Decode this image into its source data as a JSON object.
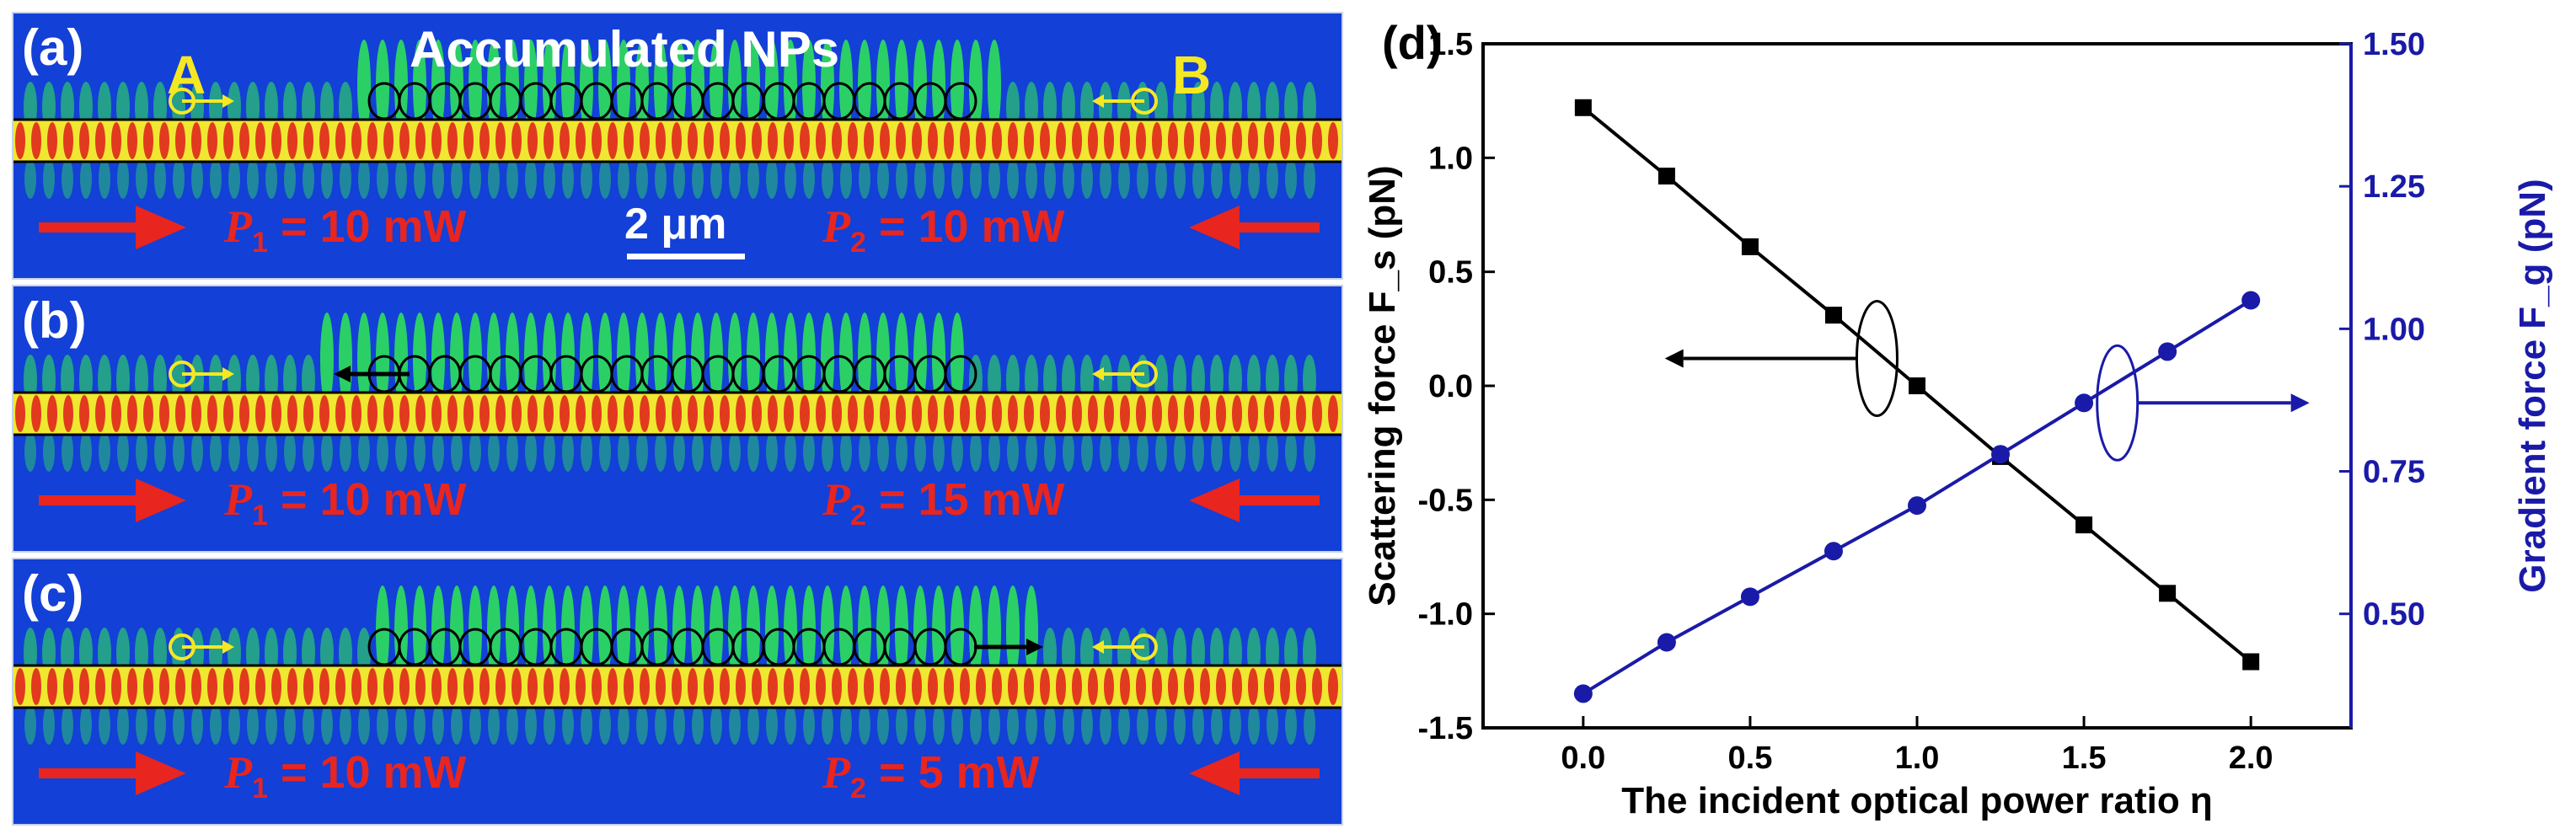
{
  "panels": [
    {
      "id": "a",
      "label": "(a)",
      "title": "Accumulated  NPs",
      "point_a": "A",
      "point_b": "B",
      "scale": "2 μm",
      "p1_symbol": "P",
      "p1_sub": "1",
      "p1_value": "= 10 mW",
      "p2_symbol": "P",
      "p2_sub": "2",
      "p2_value": "= 10 mW"
    },
    {
      "id": "b",
      "label": "(b)",
      "p1_symbol": "P",
      "p1_sub": "1",
      "p1_value": "= 10 mW",
      "p2_symbol": "P",
      "p2_sub": "2",
      "p2_value": "= 15 mW"
    },
    {
      "id": "c",
      "label": "(c)",
      "p1_symbol": "P",
      "p1_sub": "1",
      "p1_value": "= 10 mW",
      "p2_symbol": "P",
      "p2_sub": "2",
      "p2_value": "= 5 mW"
    }
  ],
  "colors": {
    "sim_bg": "#1340d6",
    "field_green": "#2ee05a",
    "field_yellow": "#f0e830",
    "field_red": "#e23a1e",
    "text_red": "#e8251f",
    "text_yellow": "#f5e823",
    "black_series": "#000000",
    "blue_series": "#1a1aa8"
  },
  "chart_data": {
    "type": "line",
    "panel_label": "(d)",
    "xlabel": "The incident optical power ratio η",
    "ylabel_left": "Scattering force F_s (pN)",
    "ylabel_right": "Gradient force F_g (pN)",
    "xlim": [
      -0.3,
      2.3
    ],
    "ylim_left": [
      -1.5,
      1.5
    ],
    "ylim_right": [
      0.3,
      1.5
    ],
    "x_ticks": [
      "0.0",
      "0.5",
      "1.0",
      "1.5",
      "2.0"
    ],
    "y_left_ticks": [
      "-1.5",
      "-1.0",
      "-0.5",
      "0.0",
      "0.5",
      "1.0",
      "1.5"
    ],
    "y_right_ticks": [
      "0.50",
      "0.75",
      "1.00",
      "1.25",
      "1.50"
    ],
    "x": [
      0,
      0.25,
      0.5,
      0.75,
      1.0,
      1.25,
      1.5,
      1.75,
      2.0
    ],
    "series": [
      {
        "name": "Scattering force",
        "axis": "left",
        "marker": "square",
        "color": "#000000",
        "values": [
          1.22,
          0.92,
          0.61,
          0.31,
          0.0,
          -0.31,
          -0.61,
          -0.91,
          -1.21
        ]
      },
      {
        "name": "Gradient force",
        "axis": "right",
        "marker": "circle",
        "color": "#1a1aa8",
        "values": [
          0.36,
          0.45,
          0.53,
          0.61,
          0.69,
          0.78,
          0.87,
          0.96,
          1.05
        ]
      }
    ]
  }
}
